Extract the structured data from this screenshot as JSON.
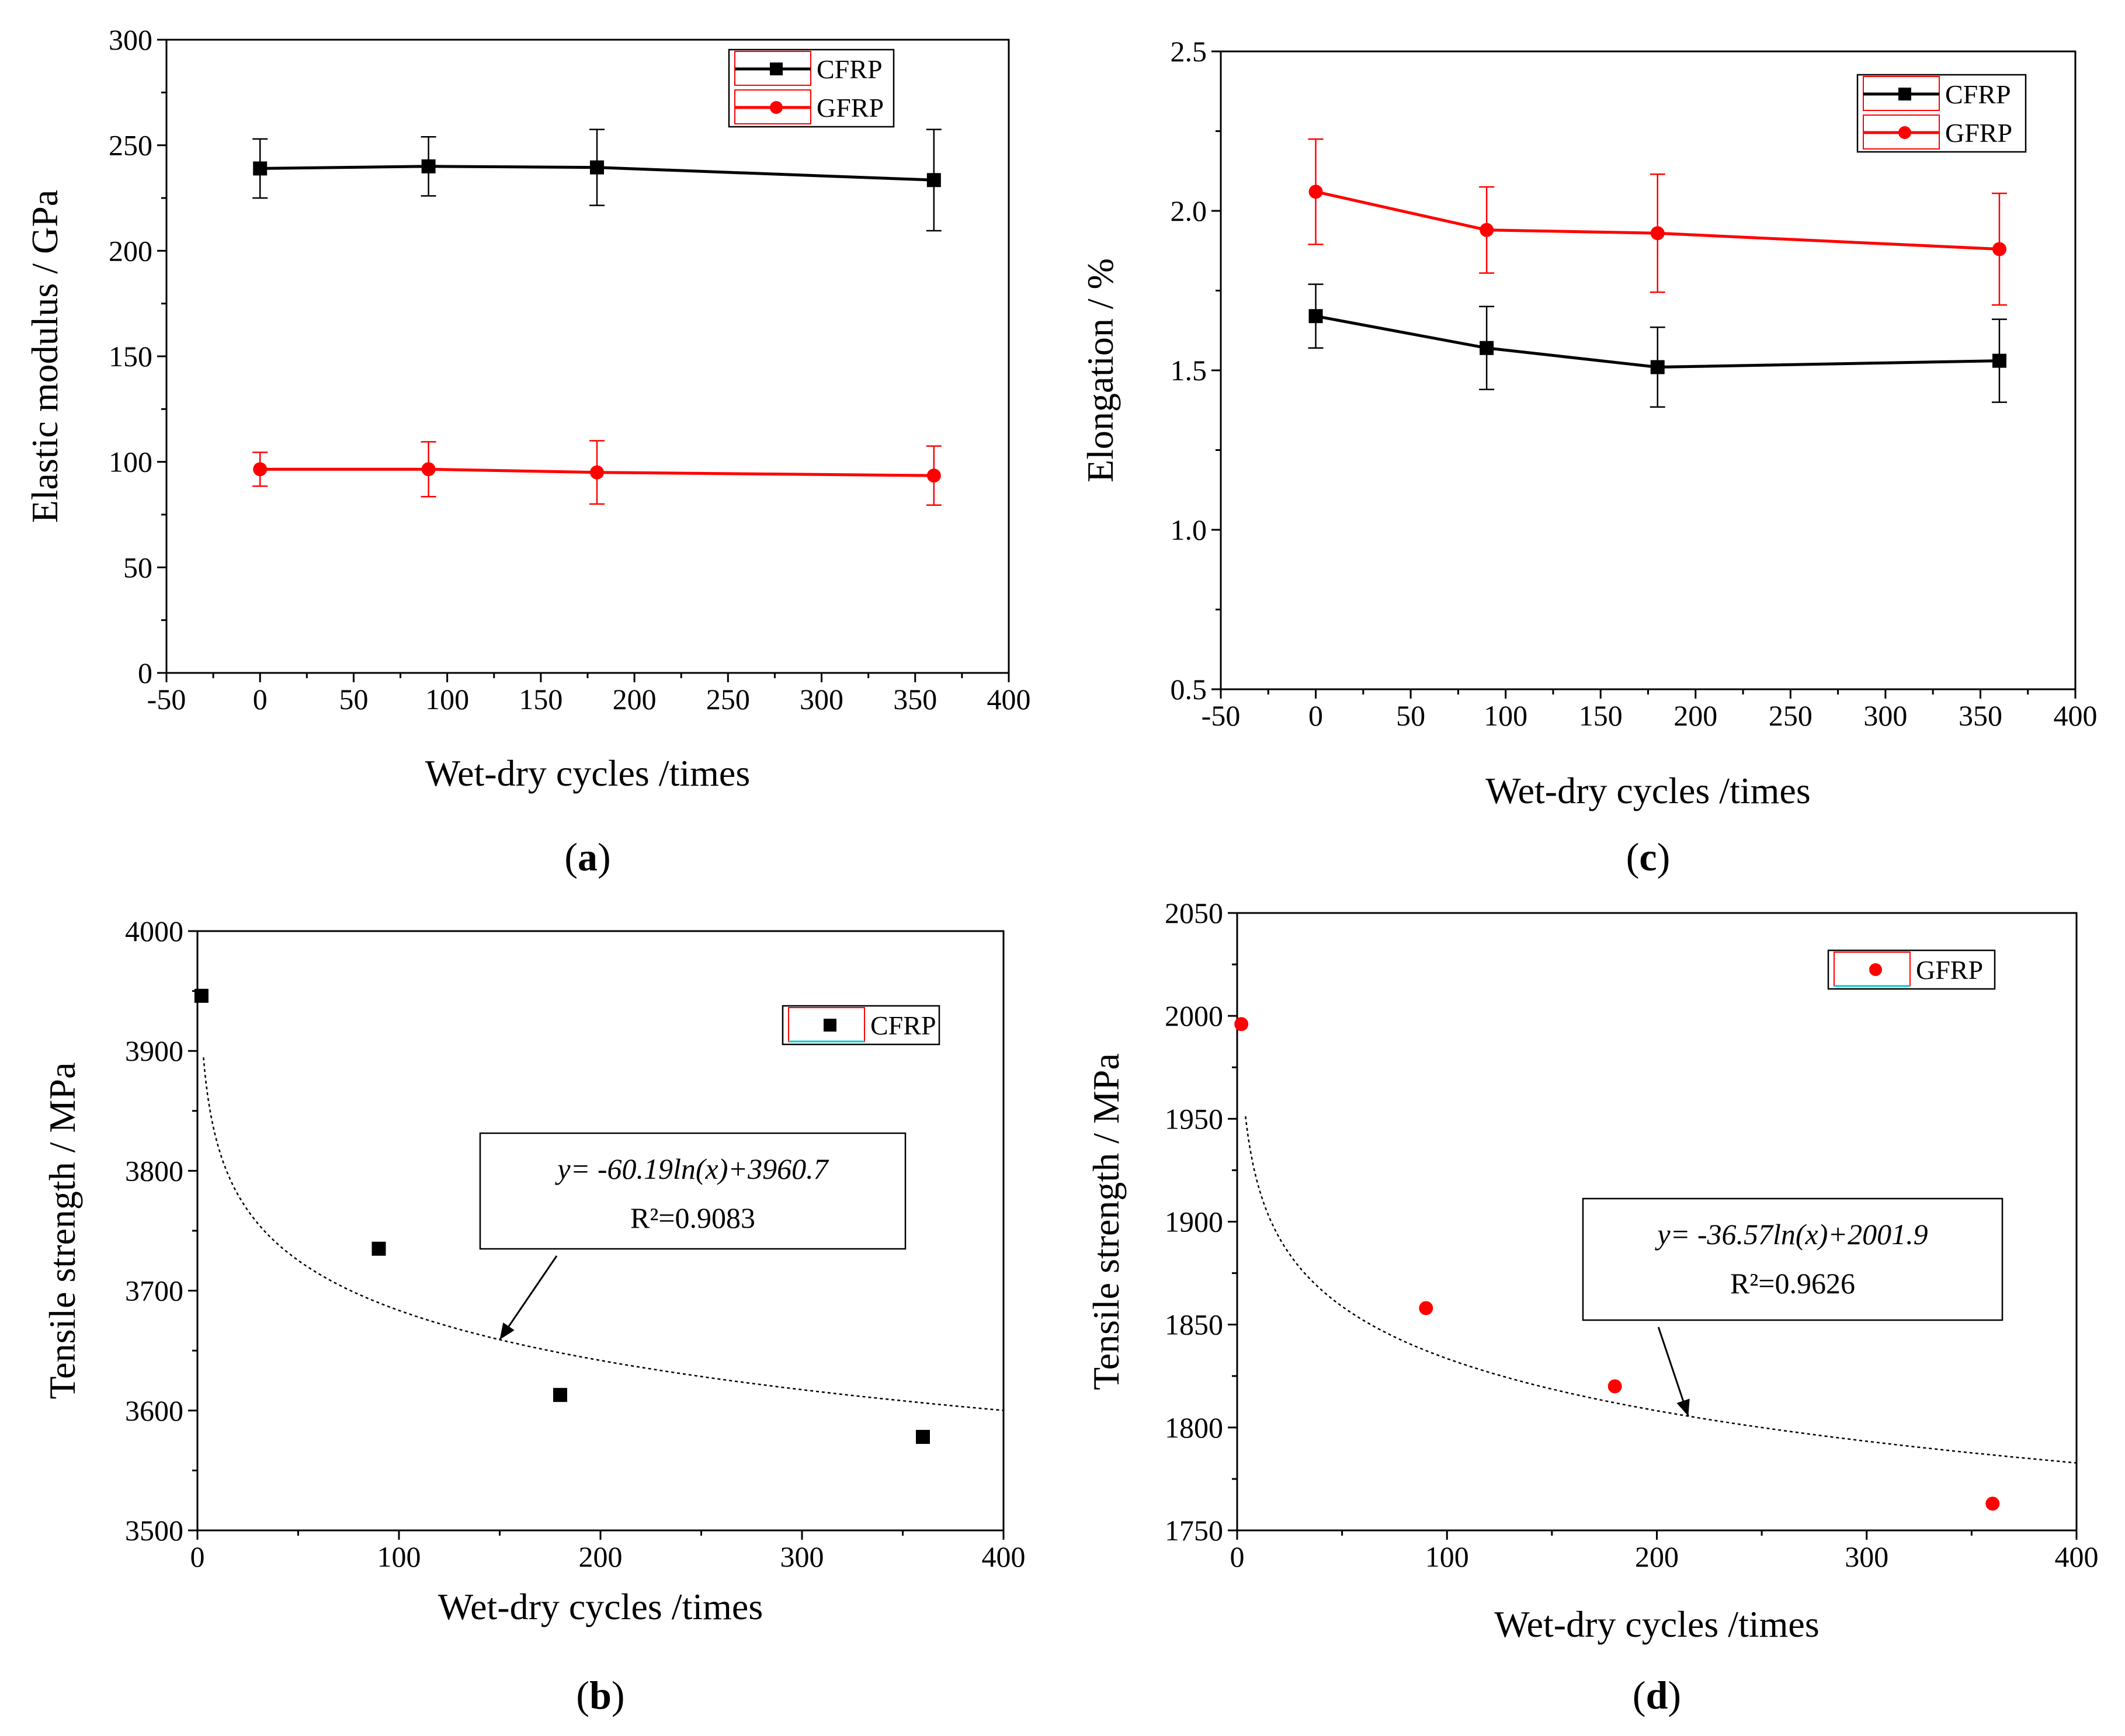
{
  "chart_data": [
    {
      "id": "a",
      "type": "line",
      "caption_letter": "a",
      "xlabel": "Wet-dry cycles /times",
      "ylabel": "Elastic modulus / GPa",
      "xlim": [
        -50,
        400
      ],
      "ylim": [
        0,
        300
      ],
      "xticks": [
        -50,
        0,
        50,
        100,
        150,
        200,
        250,
        300,
        350,
        400
      ],
      "yticks": [
        0,
        50,
        100,
        150,
        200,
        250,
        300
      ],
      "legend_position": "top-right",
      "series": [
        {
          "name": "CFRP",
          "color": "#000000",
          "marker": "square",
          "x": [
            0,
            90,
            180,
            360
          ],
          "y": [
            239,
            240,
            239.5,
            233.5
          ],
          "err": [
            14,
            14,
            18,
            24
          ]
        },
        {
          "name": "GFRP",
          "color": "#ff0000",
          "marker": "circle",
          "x": [
            0,
            90,
            180,
            360
          ],
          "y": [
            96.5,
            96.5,
            95,
            93.5
          ],
          "err": [
            8,
            13,
            15,
            14
          ]
        }
      ]
    },
    {
      "id": "c",
      "type": "line",
      "caption_letter": "c",
      "xlabel": "Wet-dry cycles /times",
      "ylabel": "Elongation / %",
      "xlim": [
        -50,
        400
      ],
      "ylim": [
        0.5,
        2.5
      ],
      "xticks": [
        -50,
        0,
        50,
        100,
        150,
        200,
        250,
        300,
        350,
        400
      ],
      "yticks": [
        "0.5",
        "1.0",
        "1.5",
        "2.0",
        "2.5"
      ],
      "legend_position": "top-right",
      "series": [
        {
          "name": "CFRP",
          "color": "#000000",
          "marker": "square",
          "x": [
            0,
            90,
            180,
            360
          ],
          "y": [
            1.67,
            1.57,
            1.51,
            1.53
          ],
          "err": [
            0.1,
            0.13,
            0.125,
            0.13
          ]
        },
        {
          "name": "GFRP",
          "color": "#ff0000",
          "marker": "circle",
          "x": [
            0,
            90,
            180,
            360
          ],
          "y": [
            2.06,
            1.94,
            1.93,
            1.88
          ],
          "err": [
            0.165,
            0.135,
            0.185,
            0.175
          ]
        }
      ]
    },
    {
      "id": "b",
      "type": "scatter",
      "caption_letter": "b",
      "xlabel": "Wet-dry cycles /times",
      "ylabel": "Tensile strength / MPa",
      "xlim": [
        0,
        400
      ],
      "ylim": [
        3500,
        4000
      ],
      "xticks": [
        0,
        100,
        200,
        300,
        400
      ],
      "yticks": [
        3500,
        3600,
        3700,
        3800,
        3900,
        4000
      ],
      "legend_position": "top-right",
      "series": [
        {
          "name": "CFRP",
          "color": "#000000",
          "marker": "square",
          "x": [
            2,
            90,
            180,
            360
          ],
          "y": [
            3946,
            3735,
            3613,
            3578
          ]
        }
      ],
      "fit": {
        "a": -60.19,
        "b": 3960.7,
        "x_from": 3,
        "x_to": 400,
        "equation": "y= -60.19ln(x)+3960.7",
        "r2": "R²=0.9083"
      },
      "annotation": {
        "line1": "y= -60.19ln(x)+3960.7",
        "line2": "R²=0.9083",
        "arrow_to_x": 150
      }
    },
    {
      "id": "d",
      "type": "scatter",
      "caption_letter": "d",
      "xlabel": "Wet-dry cycles /times",
      "ylabel": "Tensile strength / MPa",
      "xlim": [
        0,
        400
      ],
      "ylim": [
        1750,
        2050
      ],
      "xticks": [
        0,
        100,
        200,
        300,
        400
      ],
      "yticks": [
        1750,
        1800,
        1850,
        1900,
        1950,
        2000,
        2050
      ],
      "legend_position": "top-right",
      "series": [
        {
          "name": "GFRP",
          "color": "#ff0000",
          "marker": "circle",
          "x": [
            2,
            90,
            180,
            360
          ],
          "y": [
            1996,
            1858,
            1820,
            1763
          ]
        }
      ],
      "fit": {
        "a": -36.57,
        "b": 2001.9,
        "x_from": 4,
        "x_to": 400,
        "equation": "y= -36.57ln(x)+2001.9",
        "r2": "R²=0.9626"
      },
      "annotation": {
        "line1": "y= -36.57ln(x)+2001.9",
        "line2": "R²=0.9626",
        "arrow_to_x": 215
      }
    }
  ]
}
